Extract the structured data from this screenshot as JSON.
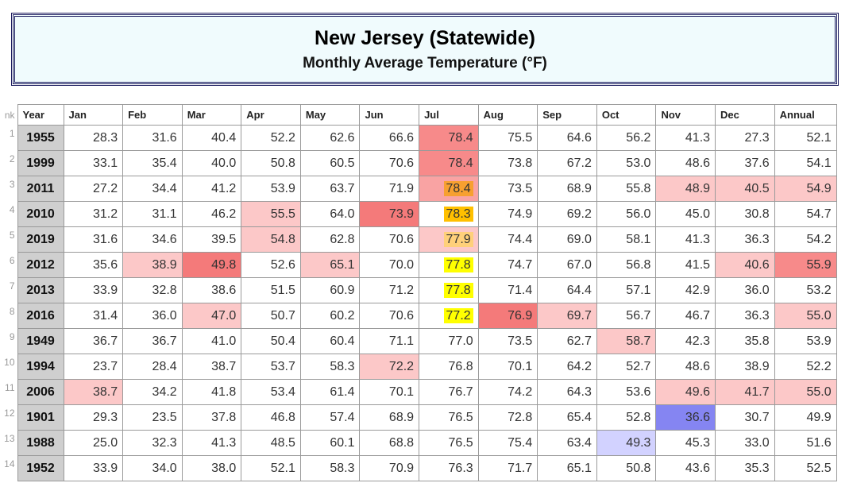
{
  "header": {
    "title": "New Jersey (Statewide)",
    "subtitle": "Monthly Average Temperature (°F)"
  },
  "table": {
    "columns": [
      "nk",
      "Year",
      "Jan",
      "Feb",
      "Mar",
      "Apr",
      "May",
      "Jun",
      "Jul",
      "Aug",
      "Sep",
      "Oct",
      "Nov",
      "Dec",
      "Annual"
    ],
    "rows": [
      {
        "rank": "1",
        "year": "1955",
        "values": [
          "28.3",
          "31.6",
          "40.4",
          "52.2",
          "62.6",
          "66.6",
          "78.4",
          "75.5",
          "64.6",
          "56.2",
          "41.3",
          "27.3",
          "52.1"
        ]
      },
      {
        "rank": "2",
        "year": "1999",
        "values": [
          "33.1",
          "35.4",
          "40.0",
          "50.8",
          "60.5",
          "70.6",
          "78.4",
          "73.8",
          "67.2",
          "53.0",
          "48.6",
          "37.6",
          "54.1"
        ]
      },
      {
        "rank": "3",
        "year": "2011",
        "values": [
          "27.2",
          "34.4",
          "41.2",
          "53.9",
          "63.7",
          "71.9",
          "78.4",
          "73.5",
          "68.9",
          "55.8",
          "48.9",
          "40.5",
          "54.9"
        ]
      },
      {
        "rank": "4",
        "year": "2010",
        "values": [
          "31.2",
          "31.1",
          "46.2",
          "55.5",
          "64.0",
          "73.9",
          "78.3",
          "74.9",
          "69.2",
          "56.0",
          "45.0",
          "30.8",
          "54.7"
        ]
      },
      {
        "rank": "5",
        "year": "2019",
        "values": [
          "31.6",
          "34.6",
          "39.5",
          "54.8",
          "62.8",
          "70.6",
          "77.9",
          "74.4",
          "69.0",
          "58.1",
          "41.3",
          "36.3",
          "54.2"
        ]
      },
      {
        "rank": "6",
        "year": "2012",
        "values": [
          "35.6",
          "38.9",
          "49.8",
          "52.6",
          "65.1",
          "70.0",
          "77.8",
          "74.7",
          "67.0",
          "56.8",
          "41.5",
          "40.6",
          "55.9"
        ]
      },
      {
        "rank": "7",
        "year": "2013",
        "values": [
          "33.9",
          "32.8",
          "38.6",
          "51.5",
          "60.9",
          "71.2",
          "77.8",
          "71.4",
          "64.4",
          "57.1",
          "42.9",
          "36.0",
          "53.2"
        ]
      },
      {
        "rank": "8",
        "year": "2016",
        "values": [
          "31.4",
          "36.0",
          "47.0",
          "50.7",
          "60.2",
          "70.6",
          "77.2",
          "76.9",
          "69.7",
          "56.7",
          "46.7",
          "36.3",
          "55.0"
        ]
      },
      {
        "rank": "9",
        "year": "1949",
        "values": [
          "36.7",
          "36.7",
          "41.0",
          "50.4",
          "60.4",
          "71.1",
          "77.0",
          "73.5",
          "62.7",
          "58.7",
          "42.3",
          "35.8",
          "53.9"
        ]
      },
      {
        "rank": "10",
        "year": "1994",
        "values": [
          "23.7",
          "28.4",
          "38.7",
          "53.7",
          "58.3",
          "72.2",
          "76.8",
          "70.1",
          "64.2",
          "52.7",
          "48.6",
          "38.9",
          "52.2"
        ]
      },
      {
        "rank": "11",
        "year": "2006",
        "values": [
          "38.7",
          "34.2",
          "41.8",
          "53.4",
          "61.4",
          "70.1",
          "76.7",
          "74.2",
          "64.3",
          "53.6",
          "49.6",
          "41.7",
          "55.0"
        ]
      },
      {
        "rank": "12",
        "year": "1901",
        "values": [
          "29.3",
          "23.5",
          "37.8",
          "46.8",
          "57.4",
          "68.9",
          "76.5",
          "72.8",
          "65.4",
          "52.8",
          "36.6",
          "30.7",
          "49.9"
        ]
      },
      {
        "rank": "13",
        "year": "1988",
        "values": [
          "25.0",
          "32.3",
          "41.3",
          "48.5",
          "60.1",
          "68.8",
          "76.5",
          "75.4",
          "63.4",
          "49.3",
          "45.3",
          "33.0",
          "51.6"
        ]
      },
      {
        "rank": "14",
        "year": "1952",
        "values": [
          "33.9",
          "34.0",
          "38.0",
          "52.1",
          "58.3",
          "70.9",
          "76.3",
          "71.7",
          "65.1",
          "50.8",
          "43.6",
          "35.3",
          "52.5"
        ]
      }
    ]
  }
}
